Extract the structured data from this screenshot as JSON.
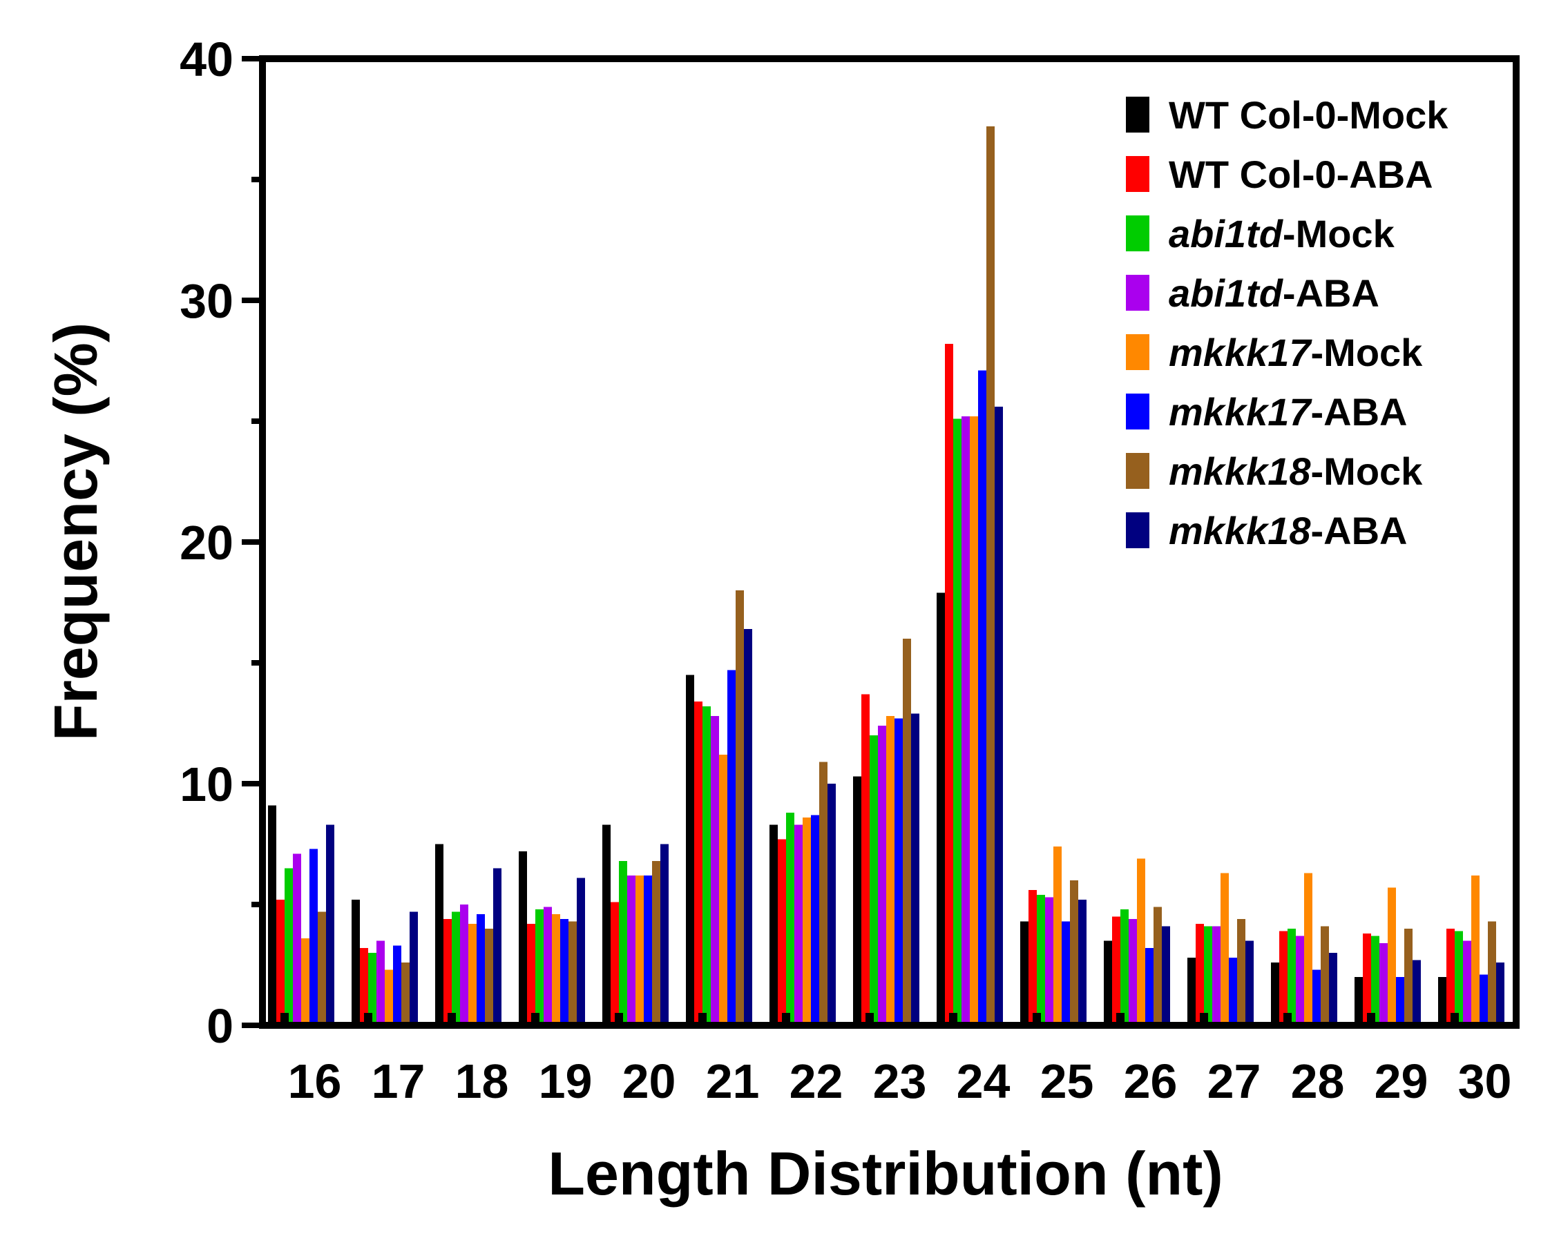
{
  "chart_data": {
    "type": "bar",
    "xlabel": "Length Distribution (nt)",
    "ylabel": "Frequency (%)",
    "ylim": [
      0,
      40
    ],
    "y_ticks": [
      "0",
      "10",
      "20",
      "30",
      "40"
    ],
    "grid": false,
    "legend_position": "top-right",
    "categories": [
      "16",
      "17",
      "18",
      "19",
      "20",
      "21",
      "22",
      "23",
      "24",
      "25",
      "26",
      "27",
      "28",
      "29",
      "30"
    ],
    "series": [
      {
        "name": "WT Col-0-Mock",
        "label_italic": "",
        "label_rest": "WT Col-0-Mock",
        "color": "#000000",
        "values": [
          9.1,
          5.2,
          7.5,
          7.2,
          8.3,
          14.5,
          8.3,
          10.3,
          17.9,
          4.3,
          3.5,
          2.8,
          2.6,
          2.0,
          2.0
        ]
      },
      {
        "name": "WT Col-0-ABA",
        "label_italic": "",
        "label_rest": "WT Col-0-ABA",
        "color": "#ff0000",
        "values": [
          5.2,
          3.2,
          4.4,
          4.2,
          5.1,
          13.4,
          7.7,
          13.7,
          28.2,
          5.6,
          4.5,
          4.2,
          3.9,
          3.8,
          4.0
        ]
      },
      {
        "name": "abi1td-Mock",
        "label_italic": "abi1td",
        "label_rest": "-Mock",
        "color": "#00cc00",
        "values": [
          6.5,
          3.0,
          4.7,
          4.8,
          6.8,
          13.2,
          8.8,
          12.0,
          25.1,
          5.4,
          4.8,
          4.1,
          4.0,
          3.7,
          3.9
        ]
      },
      {
        "name": "abi1td-ABA",
        "label_italic": "abi1td",
        "label_rest": "-ABA",
        "color": "#aa00ee",
        "values": [
          7.1,
          3.5,
          5.0,
          4.9,
          6.2,
          12.8,
          8.3,
          12.4,
          25.2,
          5.3,
          4.4,
          4.1,
          3.7,
          3.4,
          3.5
        ]
      },
      {
        "name": "mkkk17-Mock",
        "label_italic": "mkkk17",
        "label_rest": "-Mock",
        "color": "#ff8800",
        "values": [
          3.6,
          2.3,
          4.2,
          4.6,
          6.2,
          11.2,
          8.6,
          12.8,
          25.2,
          7.4,
          6.9,
          6.3,
          6.3,
          5.7,
          6.2
        ]
      },
      {
        "name": "mkkk17-ABA",
        "label_italic": "mkkk17",
        "label_rest": "-ABA",
        "color": "#0000ff",
        "values": [
          7.3,
          3.3,
          4.6,
          4.4,
          6.2,
          14.7,
          8.7,
          12.7,
          27.1,
          4.3,
          3.2,
          2.8,
          2.3,
          2.0,
          2.1
        ]
      },
      {
        "name": "mkkk18-Mock",
        "label_italic": "mkkk18",
        "label_rest": "-Mock",
        "color": "#96601e",
        "values": [
          4.7,
          2.6,
          4.0,
          4.3,
          6.8,
          18.0,
          10.9,
          16.0,
          37.2,
          6.0,
          4.9,
          4.4,
          4.1,
          4.0,
          4.3
        ]
      },
      {
        "name": "mkkk18-ABA",
        "label_italic": "mkkk18",
        "label_rest": "-ABA",
        "color": "#000080",
        "values": [
          8.3,
          4.7,
          6.5,
          6.1,
          7.5,
          16.4,
          10.0,
          12.9,
          25.6,
          5.2,
          4.1,
          3.5,
          3.0,
          2.7,
          2.6
        ]
      }
    ]
  }
}
